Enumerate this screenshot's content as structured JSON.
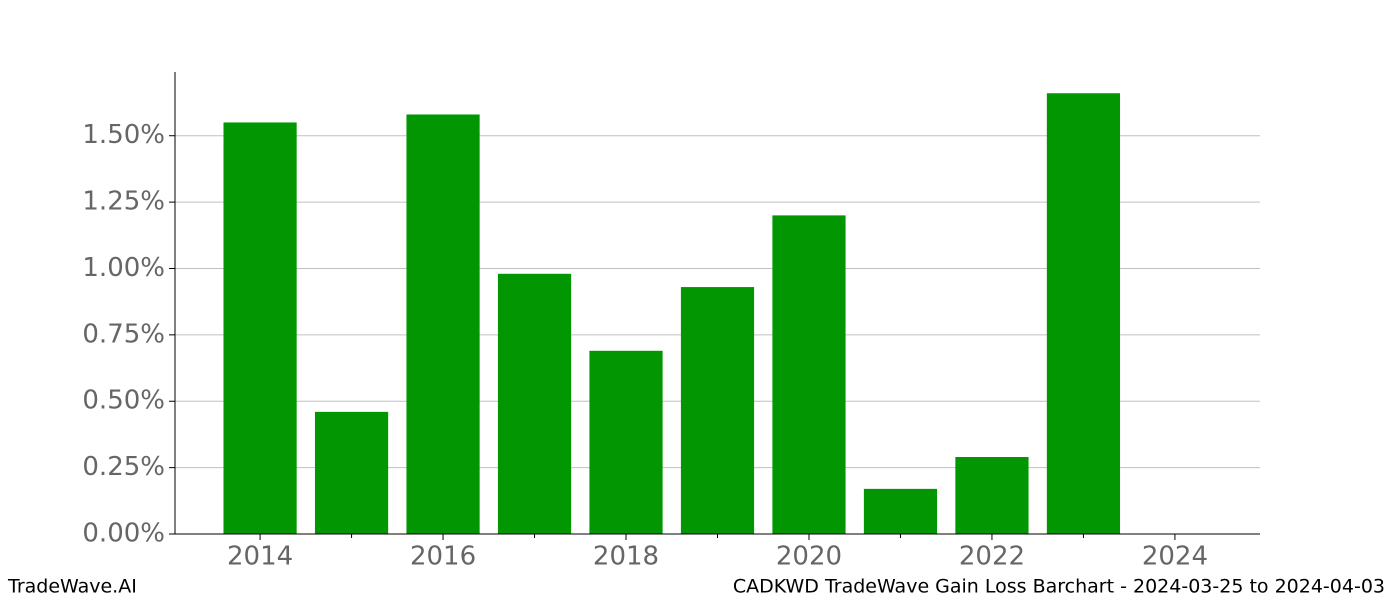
{
  "chart_data": {
    "type": "bar",
    "title": "CADKWD TradeWave Gain Loss Barchart - 2024-03-25 to 2024-04-03",
    "watermark": "TradeWave.AI",
    "x": [
      2014,
      2015,
      2016,
      2017,
      2018,
      2019,
      2020,
      2021,
      2022,
      2023
    ],
    "values": [
      1.55,
      0.46,
      1.58,
      0.98,
      0.69,
      0.93,
      1.2,
      0.17,
      0.29,
      1.66
    ],
    "color": "#029702",
    "xlim": [
      2013.07,
      2024.93
    ],
    "xticks": [
      2014,
      2016,
      2018,
      2020,
      2022,
      2024
    ],
    "xminorticks": [
      2015,
      2017,
      2019,
      2021,
      2023
    ],
    "ylim": [
      0,
      1.74
    ],
    "yticks": [
      {
        "value": 0,
        "label": "0.00%"
      },
      {
        "value": 0.25,
        "label": "0.25%"
      },
      {
        "value": 0.5,
        "label": "0.50%"
      },
      {
        "value": 0.75,
        "label": "0.75%"
      },
      {
        "value": 1.0,
        "label": "1.00%"
      },
      {
        "value": 1.25,
        "label": "1.25%"
      },
      {
        "value": 1.5,
        "label": "1.50%"
      }
    ],
    "grid": true
  }
}
